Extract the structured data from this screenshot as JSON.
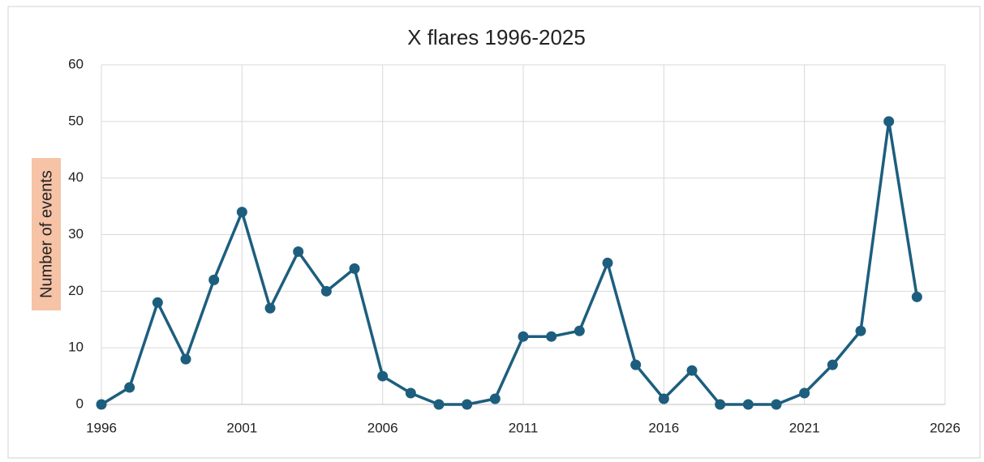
{
  "chart_data": {
    "type": "line",
    "title": "X flares  1996-2025",
    "y_label": "Number of events",
    "x": [
      1996,
      1997,
      1998,
      1999,
      2000,
      2001,
      2002,
      2003,
      2004,
      2005,
      2006,
      2007,
      2008,
      2009,
      2010,
      2011,
      2012,
      2013,
      2014,
      2015,
      2016,
      2017,
      2018,
      2019,
      2020,
      2021,
      2022,
      2023,
      2024,
      2025
    ],
    "values": [
      0,
      3,
      18,
      8,
      22,
      34,
      17,
      27,
      20,
      24,
      5,
      2,
      0,
      0,
      1,
      12,
      12,
      13,
      25,
      7,
      1,
      6,
      0,
      0,
      0,
      2,
      7,
      13,
      50,
      19
    ],
    "color": "#1d5e7e",
    "xlim": [
      1996,
      2026
    ],
    "xticks": [
      1996,
      2001,
      2006,
      2011,
      2016,
      2021,
      2026
    ],
    "ylim": [
      0,
      60
    ],
    "yticks": [
      0,
      10,
      20,
      30,
      40,
      50,
      60
    ],
    "grid": true
  }
}
